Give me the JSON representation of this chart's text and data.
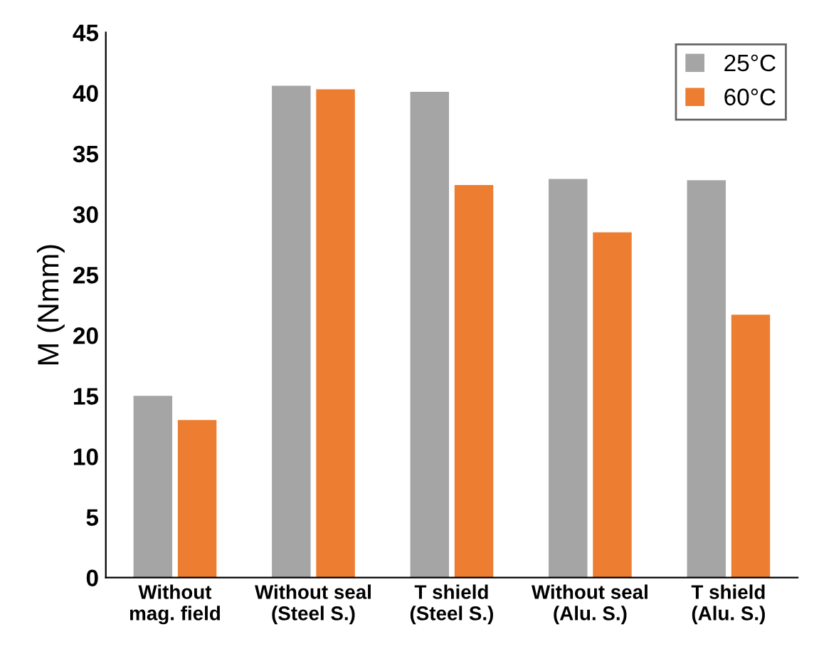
{
  "chart_data": {
    "type": "bar",
    "ylabel": "M (Nmm)",
    "categories": [
      "Without\nmag. field",
      "Without seal\n(Steel S.)",
      "T shield\n(Steel S.)",
      "Without seal\n(Alu. S.)",
      "T shield\n(Alu. S.)"
    ],
    "series": [
      {
        "name": "25°C",
        "color": "#a5a5a5",
        "values": [
          15.0,
          40.6,
          40.1,
          32.9,
          32.8
        ]
      },
      {
        "name": "60°C",
        "color": "#ed7d31",
        "values": [
          13.0,
          40.3,
          32.4,
          28.5,
          21.7
        ]
      }
    ],
    "ylim": [
      0,
      45
    ],
    "yticks": [
      0,
      5,
      10,
      15,
      20,
      25,
      30,
      35,
      40,
      45
    ],
    "grid": false,
    "legend": "top right"
  }
}
